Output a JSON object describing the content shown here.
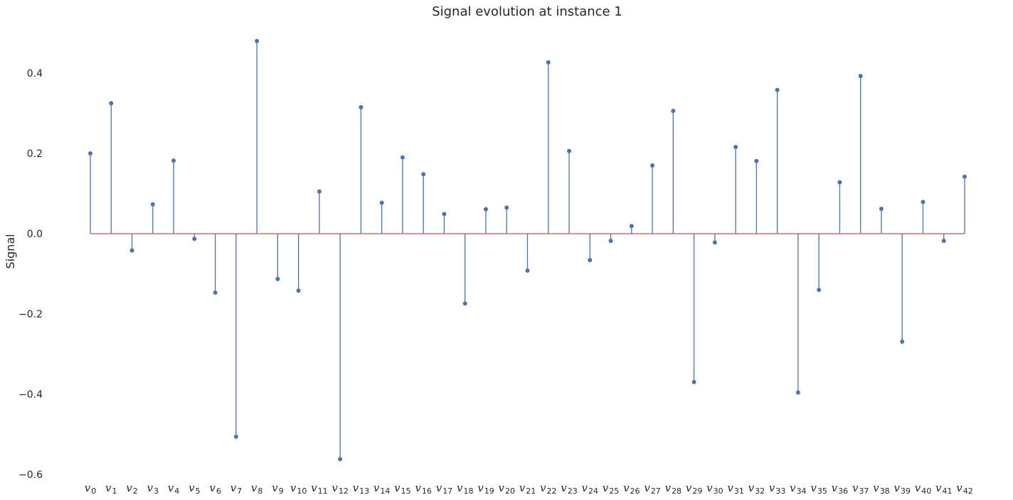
{
  "chart_data": {
    "type": "stem",
    "title": "Signal evolution at instance 1",
    "xlabel": "",
    "ylabel": "Signal",
    "ylim": [
      -0.62,
      0.5
    ],
    "yticks": [
      0.4,
      0.2,
      0.0,
      -0.2,
      -0.4,
      -0.6
    ],
    "ytick_labels": [
      "0.4",
      "0.2",
      "0.0",
      "−0.2",
      "−0.4",
      "−0.6"
    ],
    "grid": false,
    "baseline": 0,
    "colors": {
      "stem": "#4c72b0",
      "marker": "#4c72b0",
      "baseline": "#dd4455",
      "text": "#262626"
    },
    "categories": [
      {
        "base": "v",
        "sub": "0"
      },
      {
        "base": "v",
        "sub": "1"
      },
      {
        "base": "v",
        "sub": "2"
      },
      {
        "base": "v",
        "sub": "3"
      },
      {
        "base": "v",
        "sub": "4"
      },
      {
        "base": "v",
        "sub": "5"
      },
      {
        "base": "v",
        "sub": "6"
      },
      {
        "base": "v",
        "sub": "7"
      },
      {
        "base": "v",
        "sub": "8"
      },
      {
        "base": "v",
        "sub": "9"
      },
      {
        "base": "v",
        "sub": "10"
      },
      {
        "base": "v",
        "sub": "11"
      },
      {
        "base": "v",
        "sub": "12"
      },
      {
        "base": "v",
        "sub": "13"
      },
      {
        "base": "v",
        "sub": "14"
      },
      {
        "base": "v",
        "sub": "15"
      },
      {
        "base": "v",
        "sub": "16"
      },
      {
        "base": "v",
        "sub": "17"
      },
      {
        "base": "v",
        "sub": "18"
      },
      {
        "base": "v",
        "sub": "19"
      },
      {
        "base": "v",
        "sub": "20"
      },
      {
        "base": "v",
        "sub": "21"
      },
      {
        "base": "v",
        "sub": "22"
      },
      {
        "base": "v",
        "sub": "23"
      },
      {
        "base": "v",
        "sub": "24"
      },
      {
        "base": "v",
        "sub": "25"
      },
      {
        "base": "v",
        "sub": "26"
      },
      {
        "base": "v",
        "sub": "27"
      },
      {
        "base": "v",
        "sub": "28"
      },
      {
        "base": "v",
        "sub": "29"
      },
      {
        "base": "v",
        "sub": "30"
      },
      {
        "base": "v",
        "sub": "31"
      },
      {
        "base": "v",
        "sub": "32"
      },
      {
        "base": "v",
        "sub": "33"
      },
      {
        "base": "v",
        "sub": "34"
      },
      {
        "base": "v",
        "sub": "35"
      },
      {
        "base": "v",
        "sub": "36"
      },
      {
        "base": "v",
        "sub": "37"
      },
      {
        "base": "v",
        "sub": "38"
      },
      {
        "base": "v",
        "sub": "39"
      },
      {
        "base": "v",
        "sub": "40"
      },
      {
        "base": "v",
        "sub": "41"
      },
      {
        "base": "v",
        "sub": "42"
      }
    ],
    "values": [
      0.2,
      0.325,
      -0.042,
      0.073,
      0.182,
      -0.013,
      -0.147,
      -0.506,
      0.48,
      -0.113,
      -0.142,
      0.105,
      -0.562,
      0.315,
      0.077,
      0.19,
      0.148,
      0.049,
      -0.174,
      0.061,
      0.065,
      -0.092,
      0.427,
      0.206,
      -0.066,
      -0.018,
      0.019,
      0.17,
      0.306,
      -0.37,
      -0.022,
      0.216,
      0.181,
      0.358,
      -0.396,
      -0.14,
      0.128,
      0.393,
      0.062,
      -0.269,
      0.079,
      -0.018,
      0.142
    ]
  }
}
